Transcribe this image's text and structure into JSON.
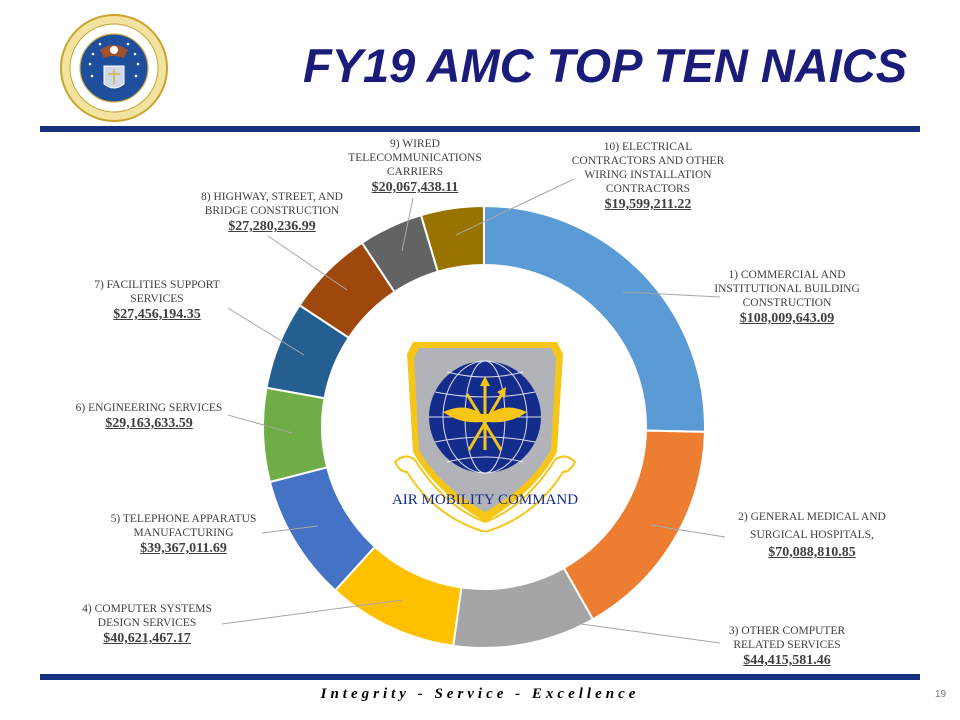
{
  "header": {
    "title": "FY19 AMC TOP TEN NAICS",
    "left_logo": "department-of-the-air-force-seal"
  },
  "center_logo": {
    "name": "air-mobility-command-shield",
    "text": "AIR MOBILITY COMMAND"
  },
  "footer": {
    "motto": "Integrity - Service - Excellence",
    "page_number": "19"
  },
  "colors": {
    "title": "#1b1b7a",
    "rule": "#14307f"
  },
  "chart_data": {
    "type": "pie",
    "variant": "donut",
    "title": "FY19 AMC TOP TEN NAICS",
    "start_angle": "12 o'clock, clockwise",
    "categories": [
      "1) COMMERCIAL AND INSTITUTIONAL BUILDING CONSTRUCTION",
      "2) GENERAL MEDICAL AND SURGICAL HOSPITALS,",
      "3) OTHER COMPUTER RELATED SERVICES",
      "4) COMPUTER SYSTEMS DESIGN SERVICES",
      "5) TELEPHONE APPARATUS MANUFACTURING",
      "6) ENGINEERING SERVICES",
      "7) FACILITIES SUPPORT SERVICES",
      "8) HIGHWAY, STREET, AND BRIDGE CONSTRUCTION",
      "9) WIRED TELECOMMUNICATIONS CARRIERS",
      "10) ELECTRICAL CONTRACTORS AND OTHER WIRING INSTALLATION CONTRACTORS"
    ],
    "values": [
      108009643.09,
      70088810.85,
      44415581.46,
      40621467.17,
      39367011.69,
      29163633.59,
      27456194.35,
      27280236.99,
      20067438.11,
      19599211.22
    ],
    "value_labels": [
      "$108,009,643.09",
      "$70,088,810.85",
      "$44,415,581.46",
      "$40,621,467.17",
      "$39,367,011.69",
      "$29,163,633.59",
      "$27,456,194.35",
      "$27,280,236.99",
      "$20,067,438.11",
      "$19,599,211.22"
    ],
    "colors": [
      "#5b9bd5",
      "#ed7d31",
      "#a5a5a5",
      "#ffc000",
      "#4472c4",
      "#70ad47",
      "#255e91",
      "#9e480e",
      "#636363",
      "#997300"
    ],
    "legend": "none (data labels with leader lines)"
  },
  "labels": [
    {
      "name_lines": [
        "1) COMMERCIAL AND",
        "INSTITUTIONAL BUILDING",
        "CONSTRUCTION"
      ],
      "amount": "$108,009,643.09"
    },
    {
      "name_lines": [
        "2) GENERAL MEDICAL AND",
        "SURGICAL HOSPITALS,"
      ],
      "amount": "$70,088,810.85"
    },
    {
      "name_lines": [
        "3) OTHER COMPUTER",
        "RELATED SERVICES"
      ],
      "amount": "$44,415,581.46"
    },
    {
      "name_lines": [
        "4) COMPUTER SYSTEMS",
        "DESIGN SERVICES"
      ],
      "amount": "$40,621,467.17"
    },
    {
      "name_lines": [
        "5) TELEPHONE APPARATUS",
        "MANUFACTURING"
      ],
      "amount": "$39,367,011.69"
    },
    {
      "name_lines": [
        "6) ENGINEERING SERVICES"
      ],
      "amount": "$29,163,633.59"
    },
    {
      "name_lines": [
        "7) FACILITIES SUPPORT",
        "SERVICES"
      ],
      "amount": "$27,456,194.35"
    },
    {
      "name_lines": [
        "8) HIGHWAY, STREET, AND",
        "BRIDGE CONSTRUCTION"
      ],
      "amount": "$27,280,236.99"
    },
    {
      "name_lines": [
        "9) WIRED",
        "TELECOMMUNICATIONS",
        "CARRIERS"
      ],
      "amount": "$20,067,438.11"
    },
    {
      "name_lines": [
        "10) ELECTRICAL",
        "CONTRACTORS AND OTHER",
        "WIRING INSTALLATION",
        "CONTRACTORS"
      ],
      "amount": "$19,599,211.22"
    }
  ]
}
